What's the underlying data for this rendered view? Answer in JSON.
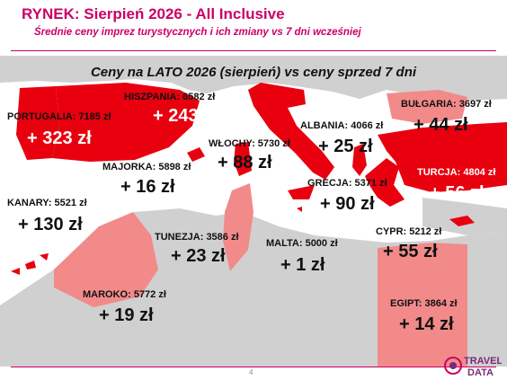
{
  "header": {
    "title": "RYNEK: Sierpień 2026 - All Inclusive",
    "subtitle": "Średnie ceny imprez turystycznych i ich zmiany vs 7 dni wcześniej"
  },
  "map_title": "Ceny na LATO 2026 (sierpień) vs ceny sprzed 7 dni",
  "destinations": [
    {
      "label": "PORTUGALIA: 7185 zł",
      "change": "+ 323 zł"
    },
    {
      "label": "HISZPANIA: 6582 zł",
      "change": "+ 243 zł"
    },
    {
      "label": "WŁOCHY: 5730 zł",
      "change": "+ 88 zł"
    },
    {
      "label": "ALBANIA: 4066 zł",
      "change": "+ 25 zł"
    },
    {
      "label": "BUŁGARIA: 3697 zł",
      "change": "+ 44 zł"
    },
    {
      "label": "MAJORKA: 5898 zł",
      "change": "+ 16 zł"
    },
    {
      "label": "TURCJA: 4804 zł",
      "change": "+ 56 zł"
    },
    {
      "label": "GRECJA: 5371 zł",
      "change": "+ 90 zł"
    },
    {
      "label": "KANARY: 5521 zł",
      "change": "+ 130 zł"
    },
    {
      "label": "TUNEZJA: 3586 zł",
      "change": "+ 23 zł"
    },
    {
      "label": "MALTA: 5000 zł",
      "change": "+ 1 zł"
    },
    {
      "label": "CYPR: 5212 zł",
      "change": "+ 55 zł"
    },
    {
      "label": "MAROKO: 5772 zł",
      "change": "+ 19 zł"
    },
    {
      "label": "EGIPT: 3864 zł",
      "change": "+ 14 zł"
    }
  ],
  "footer": {
    "page_number": "4",
    "logo_text_top": "TRAVEL",
    "logo_text_bottom": "DATA"
  },
  "colors": {
    "accent": "#cc0066",
    "region_red": "#e8000e",
    "region_pink": "#f28a8a",
    "land_gray": "#d0d0d0",
    "sea": "#ffffff"
  }
}
